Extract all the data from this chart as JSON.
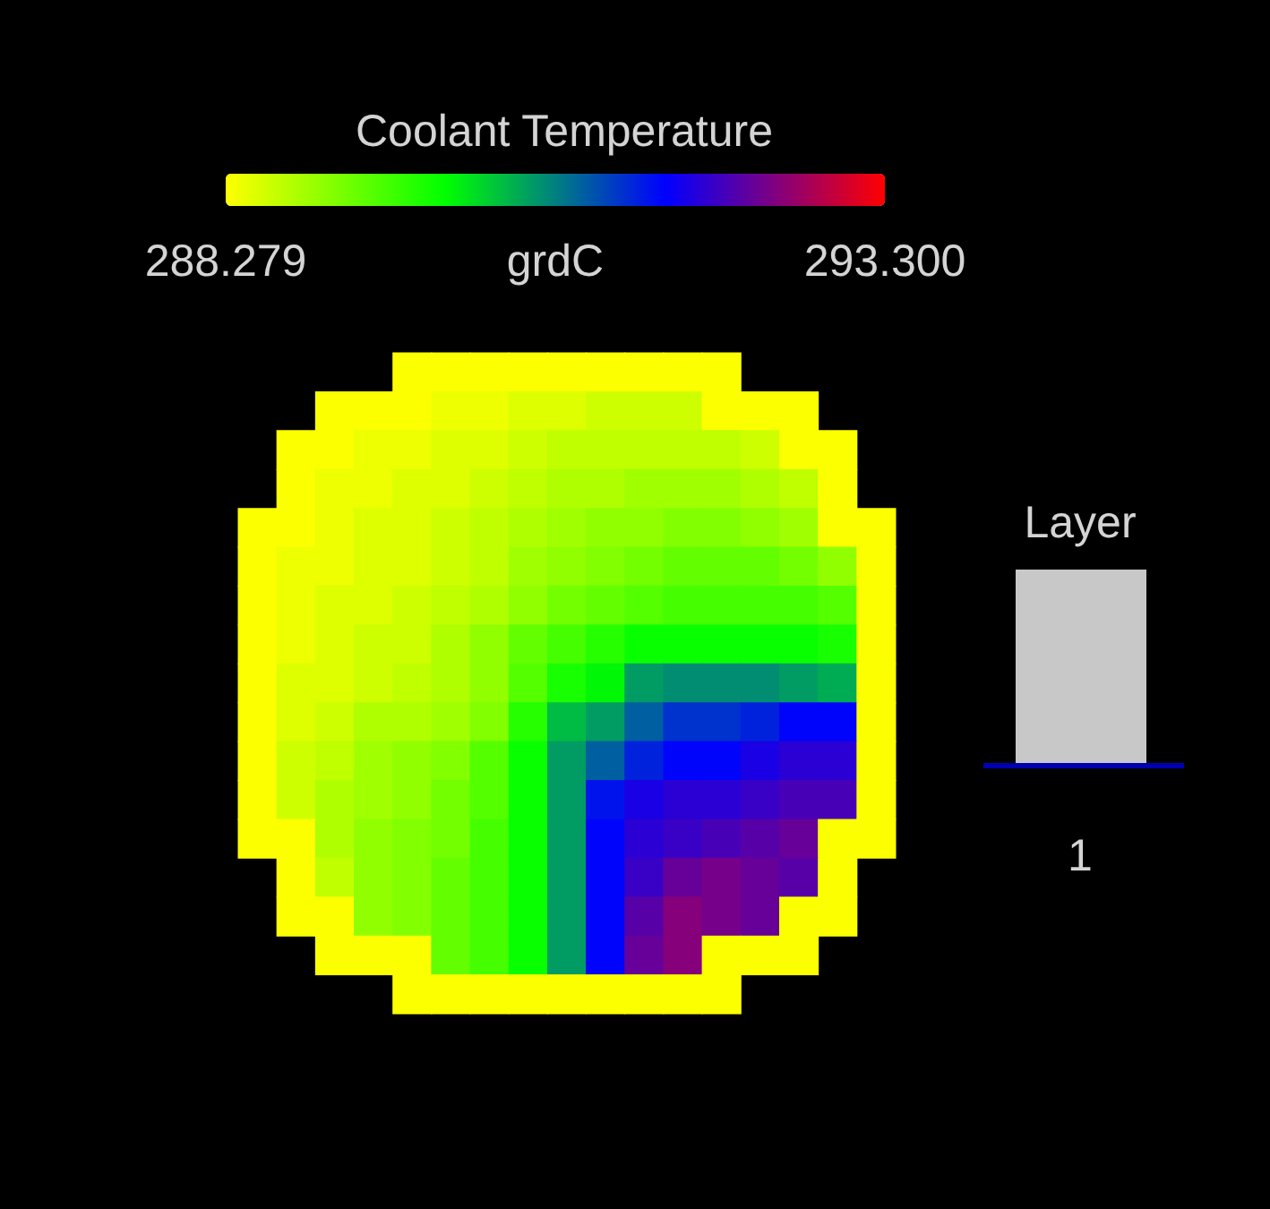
{
  "chart_data": {
    "type": "heatmap",
    "title": "Coolant Temperature",
    "clabel": "grdC",
    "clim": [
      288.279,
      293.3
    ],
    "cticks": [
      {
        "value": 288.279,
        "label": "288.279"
      },
      {
        "value": 293.3,
        "label": "293.300"
      }
    ],
    "annotations": [
      "Layer",
      "1"
    ],
    "categories": [
      null,
      null,
      null,
      null,
      null,
      null,
      null,
      null,
      null,
      null,
      null,
      null,
      null,
      null,
      null,
      null,
      null
    ],
    "y_categories": [
      null,
      null,
      null,
      null,
      null,
      null,
      null,
      null,
      null,
      null,
      null,
      null,
      null,
      null,
      null,
      null,
      null
    ],
    "cells": [
      [
        null,
        null,
        null,
        null,
        288.3,
        288.3,
        288.3,
        288.3,
        288.3,
        288.3,
        288.3,
        288.3,
        288.3,
        null,
        null,
        null,
        null
      ],
      [
        null,
        null,
        288.3,
        288.3,
        288.3,
        288.4,
        288.4,
        288.5,
        288.5,
        288.6,
        288.6,
        288.6,
        288.3,
        288.3,
        288.3,
        null,
        null
      ],
      [
        null,
        288.3,
        288.3,
        288.4,
        288.4,
        288.5,
        288.5,
        288.6,
        288.7,
        288.7,
        288.7,
        288.7,
        288.7,
        288.6,
        288.3,
        288.3,
        null
      ],
      [
        null,
        288.3,
        288.4,
        288.4,
        288.5,
        288.5,
        288.6,
        288.7,
        288.8,
        288.8,
        288.9,
        288.9,
        288.9,
        288.8,
        288.7,
        288.3,
        null
      ],
      [
        288.3,
        288.3,
        288.4,
        288.5,
        288.5,
        288.6,
        288.7,
        288.8,
        288.9,
        289.0,
        289.0,
        289.1,
        289.1,
        289.0,
        288.9,
        288.3,
        288.3
      ],
      [
        288.3,
        288.4,
        288.4,
        288.5,
        288.5,
        288.6,
        288.7,
        288.9,
        289.0,
        289.1,
        289.2,
        289.3,
        289.3,
        289.3,
        289.2,
        289.0,
        288.3
      ],
      [
        288.3,
        288.4,
        288.5,
        288.5,
        288.6,
        288.7,
        288.8,
        289.0,
        289.2,
        289.3,
        289.4,
        289.5,
        289.5,
        289.5,
        289.5,
        289.4,
        288.3
      ],
      [
        288.3,
        288.4,
        288.5,
        288.6,
        288.6,
        288.8,
        289.0,
        289.3,
        289.5,
        289.7,
        289.9,
        289.9,
        289.9,
        289.9,
        289.9,
        289.8,
        288.3
      ],
      [
        288.3,
        288.5,
        288.5,
        288.6,
        288.7,
        288.8,
        289.0,
        289.4,
        289.8,
        290.0,
        290.6,
        290.7,
        290.7,
        290.7,
        290.6,
        290.5,
        288.3
      ],
      [
        288.3,
        288.5,
        288.6,
        288.8,
        288.8,
        288.9,
        289.1,
        289.7,
        290.4,
        290.6,
        291.0,
        291.3,
        291.3,
        291.4,
        291.6,
        291.6,
        288.3
      ],
      [
        288.3,
        288.6,
        288.7,
        288.9,
        289.0,
        289.1,
        289.4,
        289.9,
        290.6,
        291.0,
        291.4,
        291.6,
        291.6,
        291.8,
        291.9,
        291.9,
        288.3
      ],
      [
        288.3,
        288.6,
        288.8,
        288.9,
        289.0,
        289.2,
        289.4,
        289.9,
        290.6,
        291.5,
        291.8,
        291.9,
        291.9,
        292.0,
        292.1,
        292.1,
        288.3
      ],
      [
        288.3,
        288.3,
        288.8,
        289.0,
        289.1,
        289.2,
        289.5,
        289.9,
        290.6,
        291.6,
        291.9,
        292.0,
        292.1,
        292.2,
        292.3,
        288.3,
        288.3
      ],
      [
        null,
        288.3,
        288.7,
        289.0,
        289.1,
        289.3,
        289.5,
        289.9,
        290.6,
        291.6,
        292.0,
        292.3,
        292.4,
        292.3,
        292.2,
        288.3,
        null
      ],
      [
        null,
        288.3,
        288.3,
        289.0,
        289.1,
        289.3,
        289.5,
        289.9,
        290.6,
        291.6,
        292.2,
        292.5,
        292.4,
        292.3,
        288.3,
        288.3,
        null
      ],
      [
        null,
        null,
        288.3,
        288.3,
        288.3,
        289.3,
        289.5,
        289.9,
        290.6,
        291.6,
        292.3,
        292.5,
        288.3,
        288.3,
        288.3,
        null,
        null
      ],
      [
        null,
        null,
        null,
        null,
        288.3,
        288.3,
        288.3,
        288.3,
        288.3,
        288.3,
        288.3,
        288.3,
        288.3,
        null,
        null,
        null,
        null
      ]
    ]
  }
}
